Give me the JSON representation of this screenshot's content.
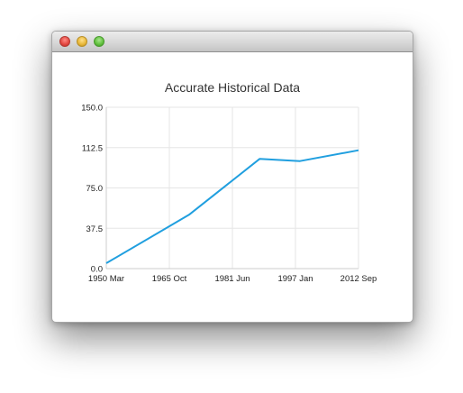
{
  "window": {
    "title": ""
  },
  "chart_data": {
    "type": "line",
    "title": "Accurate Historical Data",
    "xlabel": "",
    "ylabel": "",
    "x_axis": {
      "tick_labels": [
        "1950 Mar",
        "1965 Oct",
        "1981 Jun",
        "1997 Jan",
        "2012 Sep"
      ],
      "range": [
        "1950-03",
        "2012-09"
      ]
    },
    "y_axis": {
      "tick_labels": [
        "0.0",
        "37.5",
        "75.0",
        "112.5",
        "150.0"
      ],
      "ylim": [
        0,
        150
      ]
    },
    "grid": true,
    "series": [
      {
        "color": "#209fdf",
        "points": [
          {
            "x": "1950-03",
            "y": 5
          },
          {
            "x": "1970-09",
            "y": 50
          },
          {
            "x": "1988-03",
            "y": 102
          },
          {
            "x": "1998-03",
            "y": 100
          },
          {
            "x": "2012-09",
            "y": 110
          }
        ]
      }
    ]
  }
}
